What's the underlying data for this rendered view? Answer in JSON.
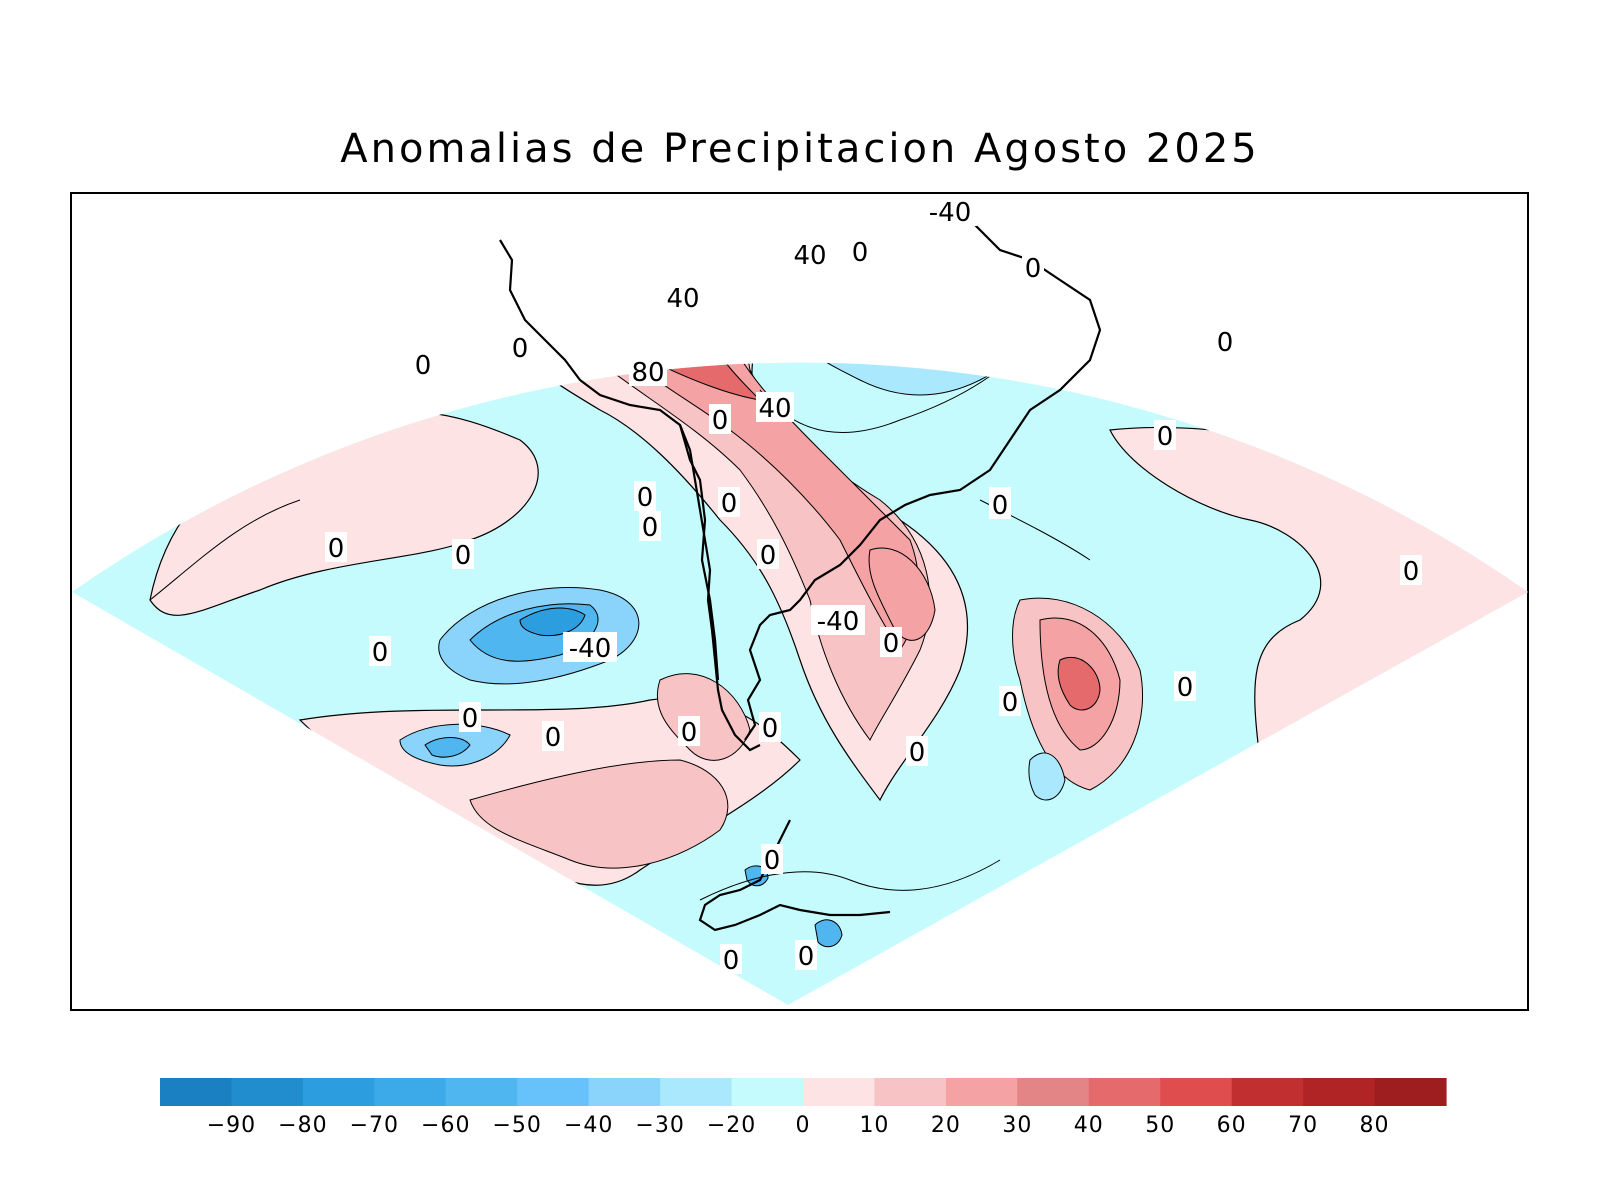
{
  "title": "Anomalias de Precipitacion Agosto 2025",
  "colors": {
    "ocean_base": "#c5fbfc",
    "land_base": "#fde3e4",
    "line": "#000000"
  },
  "map": {
    "contour_labels": [
      "-40",
      "0",
      "40",
      "0",
      "40",
      "0",
      "0",
      "80",
      "40",
      "0",
      "0",
      "0",
      "0",
      "0",
      "0",
      "0",
      "0",
      "0",
      "0",
      "0",
      "-40",
      "0",
      "-40",
      "0",
      "0",
      "0",
      "0",
      "0",
      "0",
      "0",
      "0",
      "0",
      "0",
      "0",
      "0"
    ]
  },
  "colorbar": {
    "colors": [
      "#1a80c2",
      "#218dcf",
      "#2c9ee0",
      "#3ca9e8",
      "#50b6f0",
      "#67c2fb",
      "#8ad4fc",
      "#aae9fd",
      "#c5fbfc",
      "#fde3e4",
      "#f8c3c4",
      "#f4a2a4",
      "#e38587",
      "#e46a6b",
      "#e04d4e",
      "#c12f30",
      "#b02426",
      "#9e1e20"
    ],
    "tick_labels": [
      "−90",
      "−80",
      "−70",
      "−60",
      "−50",
      "−40",
      "−30",
      "−20",
      "0",
      "10",
      "20",
      "30",
      "40",
      "50",
      "60",
      "70",
      "80"
    ]
  }
}
